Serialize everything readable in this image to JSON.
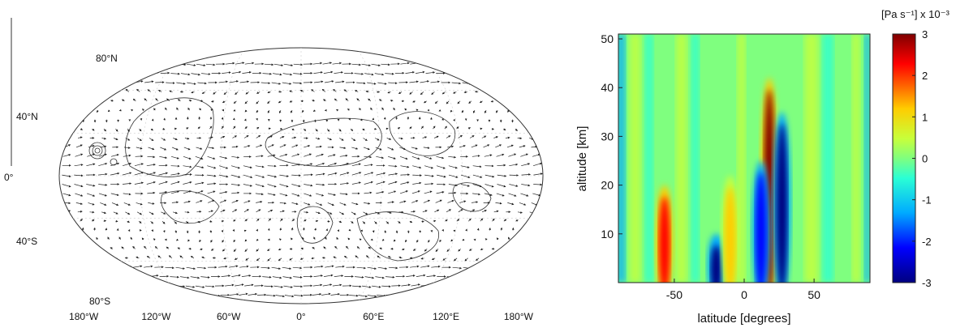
{
  "chart_data": [
    {
      "type": "map",
      "title": "",
      "lat_labels": [
        "80°N",
        "40°N",
        "0°",
        "40°S",
        "80°S"
      ],
      "lat_values": [
        80,
        40,
        0,
        -40,
        -80
      ],
      "lon_labels": [
        "180°W",
        "120°W",
        "60°W",
        "0°",
        "60°E",
        "120°E",
        "180°W"
      ],
      "lon_values": [
        -180,
        -120,
        -60,
        0,
        60,
        120,
        180
      ],
      "content": "wind vectors over topography contours"
    },
    {
      "type": "heatmap",
      "title": "",
      "xlabel": "latitude [degrees]",
      "ylabel": "altitude [km]",
      "xlim": [
        -90,
        90
      ],
      "ylim": [
        0,
        51
      ],
      "xticks": [
        -50,
        0,
        50
      ],
      "yticks": [
        10,
        20,
        30,
        40,
        50
      ],
      "colorbar": {
        "label": "[Pa s⁻¹] x 10⁻³",
        "range": [
          -3,
          3
        ],
        "ticks": [
          3,
          2,
          1,
          0,
          -1,
          -2,
          -3
        ]
      },
      "features": [
        {
          "lat": 18,
          "alt_top": 42,
          "value": 3
        },
        {
          "lat": 27,
          "alt_top": 35,
          "value": -3
        },
        {
          "lat": 12,
          "alt_top": 25,
          "value": -2
        },
        {
          "lat": -57,
          "alt_top": 20,
          "value": 2.5
        },
        {
          "lat": -20,
          "alt_top": 10,
          "value": -3
        },
        {
          "lat": -10,
          "alt_top": 22,
          "value": 1.5
        }
      ]
    }
  ]
}
